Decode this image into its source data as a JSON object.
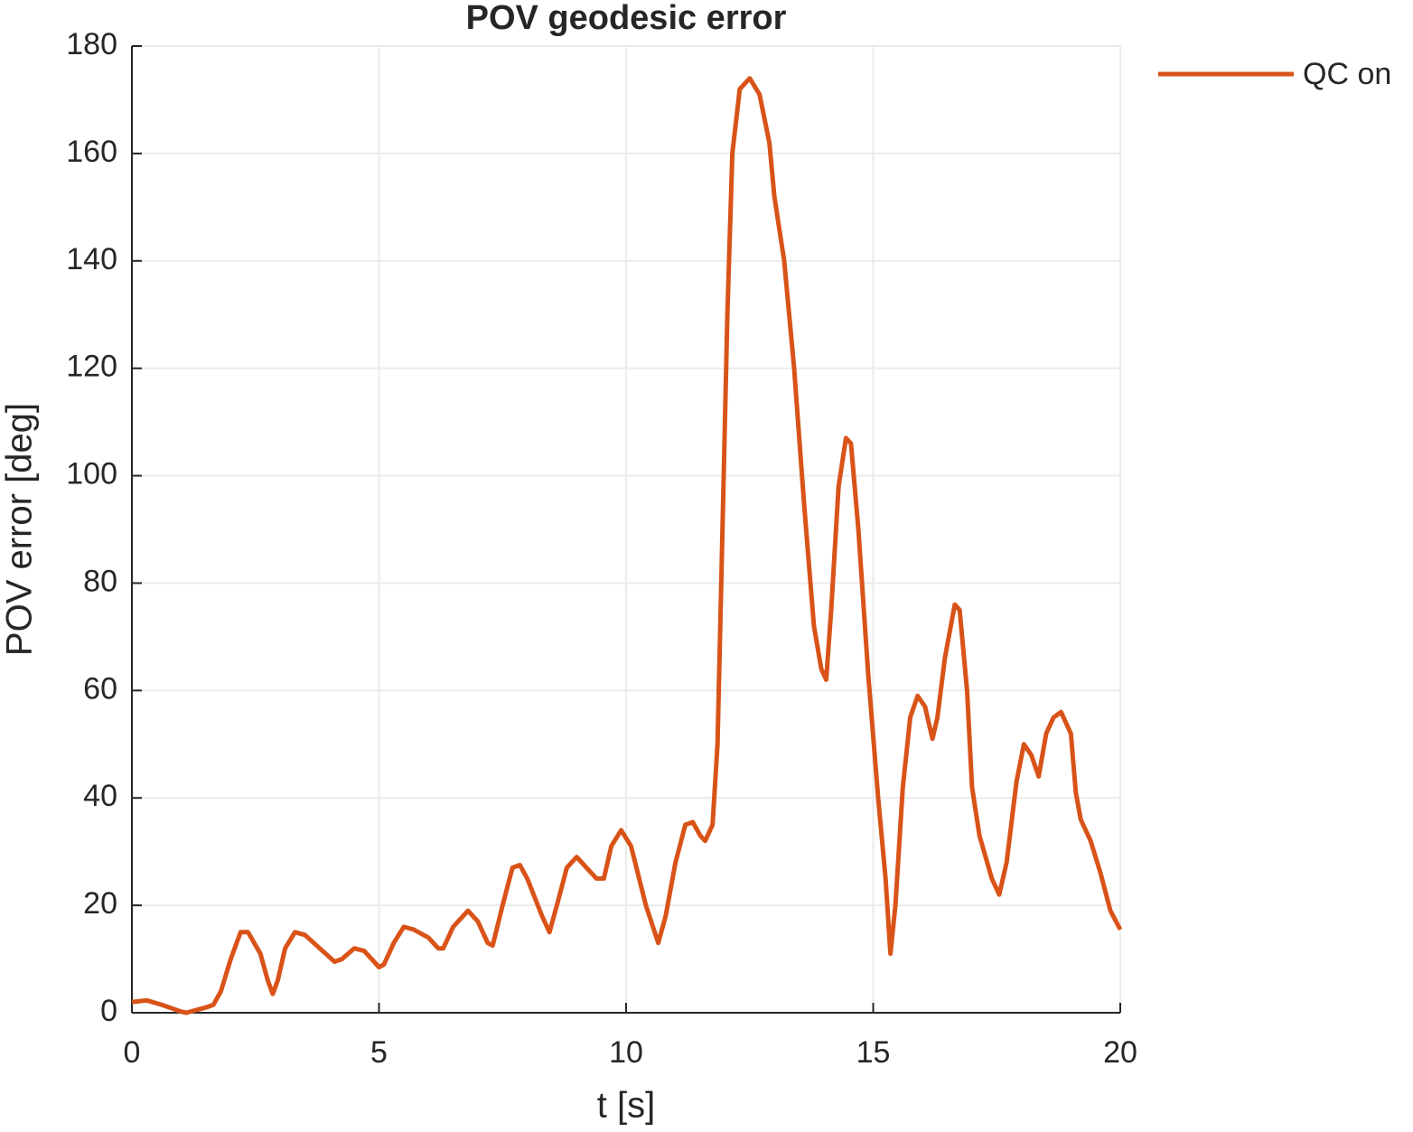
{
  "chart_data": {
    "type": "line",
    "title": "POV geodesic error",
    "xlabel": "t [s]",
    "ylabel": "POV error [deg]",
    "xlim": [
      0,
      20
    ],
    "xticks": [
      0,
      5,
      10,
      15,
      20
    ],
    "ylim": [
      0,
      180
    ],
    "yticks": [
      0,
      20,
      40,
      60,
      80,
      100,
      120,
      140,
      160,
      180
    ],
    "grid": true,
    "legend": "outside-top-right",
    "x": [
      0,
      0.3,
      0.6,
      1.0,
      1.1,
      1.5,
      1.65,
      1.8,
      2.0,
      2.2,
      2.35,
      2.6,
      2.75,
      2.85,
      2.95,
      3.1,
      3.3,
      3.5,
      3.8,
      4.1,
      4.25,
      4.5,
      4.7,
      5.0,
      5.1,
      5.3,
      5.5,
      5.7,
      6.0,
      6.2,
      6.3,
      6.5,
      6.8,
      7.0,
      7.2,
      7.3,
      7.5,
      7.7,
      7.85,
      8.0,
      8.3,
      8.45,
      8.6,
      8.8,
      9.0,
      9.2,
      9.4,
      9.55,
      9.7,
      9.9,
      10.1,
      10.4,
      10.65,
      10.8,
      11.0,
      11.2,
      11.35,
      11.5,
      11.6,
      11.75,
      11.85,
      11.95,
      12.05,
      12.15,
      12.3,
      12.5,
      12.7,
      12.9,
      13.0,
      13.2,
      13.4,
      13.6,
      13.8,
      13.95,
      14.05,
      14.15,
      14.3,
      14.45,
      14.55,
      14.7,
      14.9,
      15.1,
      15.25,
      15.35,
      15.45,
      15.6,
      15.75,
      15.9,
      16.05,
      16.2,
      16.3,
      16.45,
      16.65,
      16.75,
      16.9,
      17.0,
      17.15,
      17.4,
      17.55,
      17.7,
      17.9,
      18.05,
      18.2,
      18.35,
      18.5,
      18.65,
      18.8,
      19.0,
      19.1,
      19.2,
      19.4,
      19.6,
      19.8,
      20.0
    ],
    "series": [
      {
        "name": "QC on",
        "color": "#d95319",
        "values": [
          2,
          2.3,
          1.5,
          0.2,
          0,
          1,
          1.5,
          4,
          10,
          15,
          15,
          11,
          6,
          3.5,
          6,
          12,
          15,
          14.5,
          12,
          9.5,
          10,
          12,
          11.5,
          8.5,
          9,
          13,
          16,
          15.5,
          14,
          12,
          12,
          16,
          19,
          17,
          13,
          12.5,
          20,
          27,
          27.5,
          25,
          18,
          15,
          20,
          27,
          29,
          27,
          25,
          25,
          31,
          34,
          31,
          20,
          13,
          18,
          28,
          35,
          35.5,
          33,
          32,
          35,
          50,
          90,
          130,
          160,
          172,
          174,
          171,
          162,
          152,
          140,
          120,
          95,
          72,
          64,
          62,
          75,
          98,
          107,
          106,
          90,
          63,
          40,
          25,
          11,
          20,
          42,
          55,
          59,
          57,
          51,
          55,
          66,
          76,
          75,
          60,
          42,
          33,
          25,
          22,
          28,
          43,
          50,
          48,
          44,
          52,
          55,
          56,
          52,
          41,
          36,
          32,
          26,
          19,
          15.5
        ]
      }
    ]
  }
}
